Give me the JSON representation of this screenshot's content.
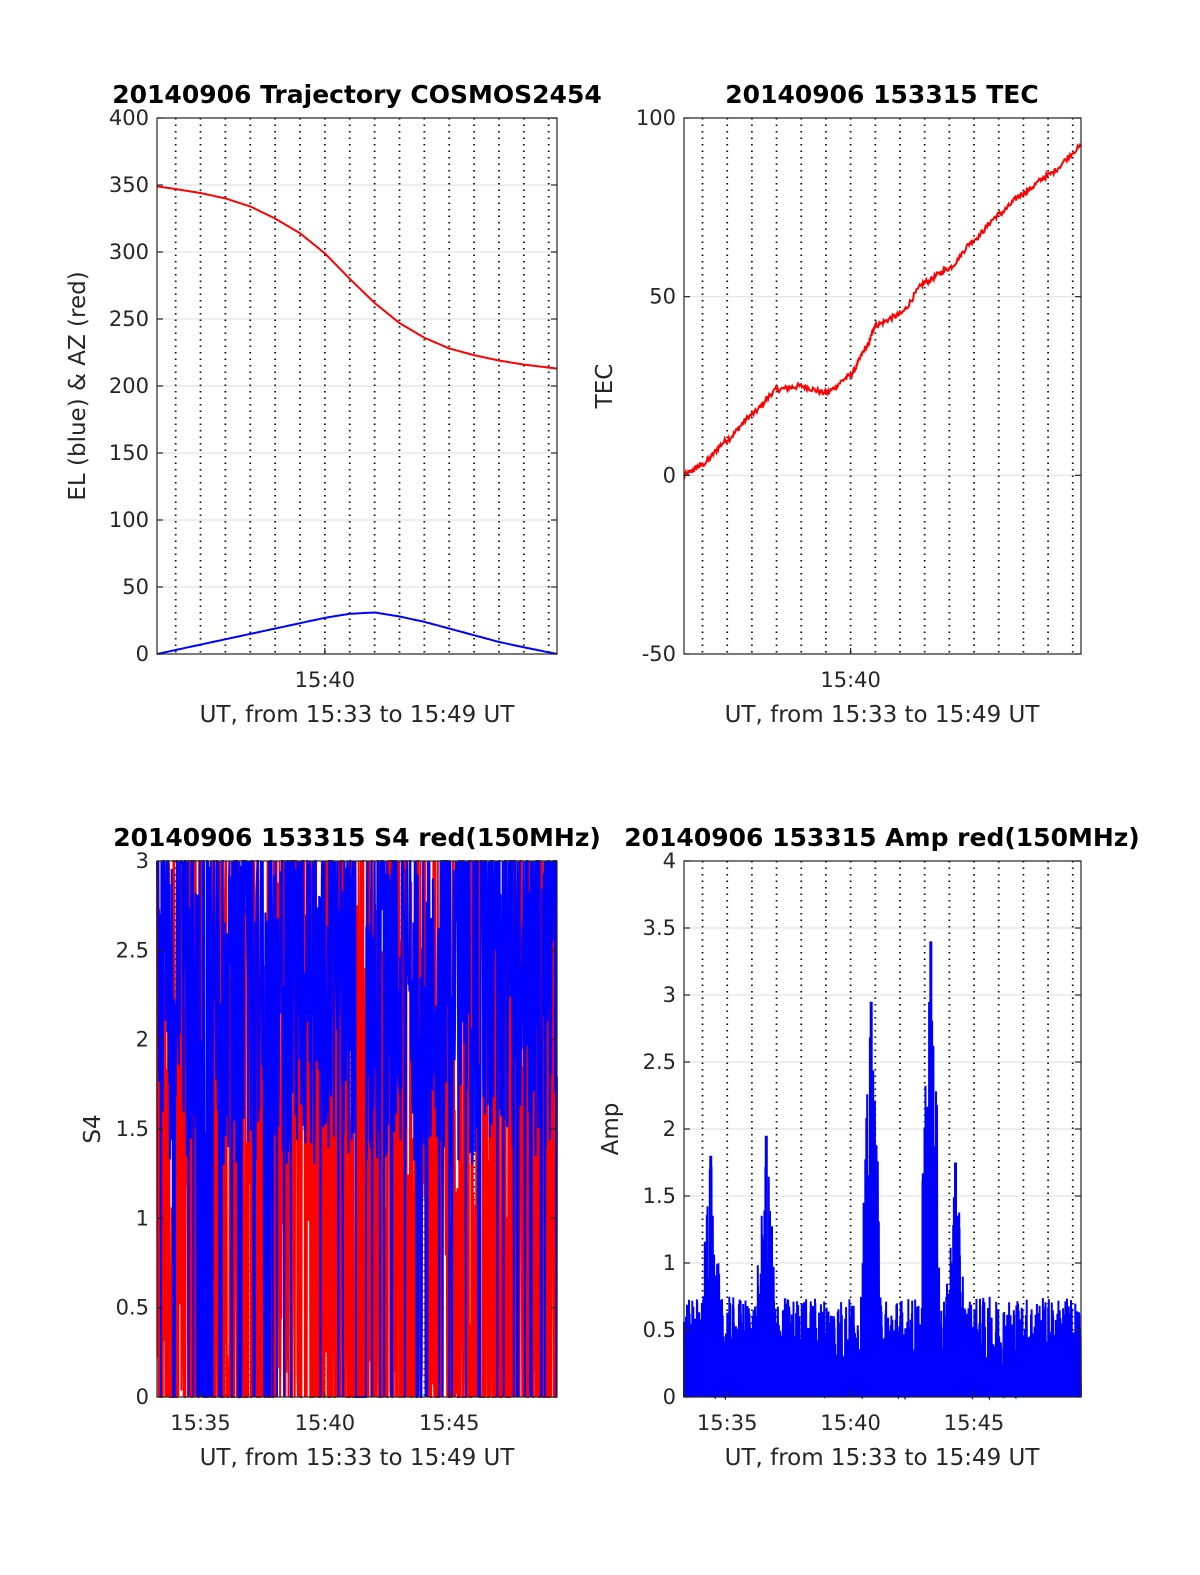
{
  "figure": {
    "background": "#ffffff",
    "colors": {
      "blue": "#0000ff",
      "red": "#ff0000",
      "grid": "#bdbdbd",
      "axis": "#262626"
    }
  },
  "chart_data": [
    {
      "id": "trajectory",
      "type": "line",
      "title": "20140906 Trajectory COSMOS2454",
      "xlabel": "UT, from 15:33 to 15:49 UT",
      "ylabel": "EL (blue) & AZ (red)",
      "xlim": [
        "15:33:15",
        "15:49:20"
      ],
      "ylim": [
        0,
        400
      ],
      "x_ticks": [
        "15:40"
      ],
      "y_ticks": [
        "0",
        "50",
        "100",
        "150",
        "200",
        "250",
        "300",
        "350",
        "400"
      ],
      "y_tick_values": [
        0,
        50,
        100,
        150,
        200,
        250,
        300,
        350,
        400
      ],
      "vertical_dotted_gridlines_minutes": [
        0.75,
        1.75,
        2.75,
        3.75,
        4.75,
        5.75,
        6.75,
        7.75,
        8.75,
        9.75,
        10.75,
        11.75,
        12.75,
        13.75,
        14.75,
        15.75
      ],
      "horizontal_grid": true,
      "series": [
        {
          "color": "#ff0000",
          "x": [
            "15:33:15",
            "15:34:00",
            "15:35:00",
            "15:36:00",
            "15:37:00",
            "15:38:00",
            "15:39:00",
            "15:40:00",
            "15:41:00",
            "15:42:00",
            "15:43:00",
            "15:44:00",
            "15:45:00",
            "15:46:00",
            "15:47:00",
            "15:48:00",
            "15:49:20"
          ],
          "y": [
            349,
            347,
            344,
            340,
            334,
            325,
            314,
            299,
            280,
            262,
            247,
            236,
            228,
            223,
            219,
            216,
            213
          ]
        },
        {
          "color": "#0000ff",
          "x": [
            "15:33:15",
            "15:34:00",
            "15:35:00",
            "15:36:00",
            "15:37:00",
            "15:38:00",
            "15:39:00",
            "15:40:00",
            "15:41:00",
            "15:42:00",
            "15:43:00",
            "15:44:00",
            "15:45:00",
            "15:46:00",
            "15:47:00",
            "15:48:00",
            "15:49:20"
          ],
          "y": [
            0,
            3,
            7,
            11,
            15,
            19,
            23,
            27,
            30,
            31,
            28,
            24,
            19,
            14,
            9,
            5,
            0
          ]
        }
      ]
    },
    {
      "id": "tec",
      "type": "line",
      "title": "20140906 153315 TEC",
      "xlabel": "UT, from 15:33 to 15:49 UT",
      "ylabel": "TEC",
      "xlim": [
        "15:33:15",
        "15:49:20"
      ],
      "ylim": [
        -50,
        100
      ],
      "x_ticks": [
        "15:40"
      ],
      "y_ticks": [
        "-50",
        "0",
        "50",
        "100"
      ],
      "y_tick_values": [
        -50,
        0,
        50,
        100
      ],
      "vertical_dotted_gridlines_minutes": [
        0.75,
        1.75,
        2.75,
        3.75,
        4.75,
        5.75,
        6.75,
        7.75,
        8.75,
        9.75,
        10.75,
        11.75,
        12.75,
        13.75,
        14.75,
        15.75
      ],
      "horizontal_grid": true,
      "series": [
        {
          "color": "#ff0000",
          "x": [
            "15:33:15",
            "15:34:00",
            "15:35:00",
            "15:36:00",
            "15:37:00",
            "15:38:00",
            "15:39:00",
            "15:40:00",
            "15:40:40",
            "15:41:00",
            "15:42:00",
            "15:43:00",
            "15:44:00",
            "15:45:00",
            "15:46:00",
            "15:47:00",
            "15:48:00",
            "15:49:20"
          ],
          "y": [
            0,
            3,
            10,
            17,
            24,
            25,
            23,
            28,
            36,
            42,
            45,
            54,
            58,
            66,
            73,
            79,
            84,
            92
          ]
        }
      ]
    },
    {
      "id": "s4",
      "type": "line",
      "title": "20140906 153315 S4 red(150MHz)",
      "xlabel": "UT, from 15:33 to 15:49 UT",
      "ylabel": "S4",
      "xlim": [
        "15:33:15",
        "15:49:20"
      ],
      "ylim": [
        0,
        3
      ],
      "x_ticks": [
        "15:35",
        "15:40",
        "15:45"
      ],
      "x_tick_minutes": [
        1.75,
        6.75,
        11.75
      ],
      "y_ticks": [
        "0",
        "0.5",
        "1",
        "1.5",
        "2",
        "2.5",
        "3"
      ],
      "y_tick_values": [
        0,
        0.5,
        1,
        1.5,
        2,
        2.5,
        3
      ],
      "vertical_dotted_gridlines_minutes": [
        0.75,
        1.75,
        2.75,
        3.75,
        4.75,
        5.75,
        6.75,
        7.75,
        8.75,
        9.75,
        10.75,
        11.75,
        12.75,
        13.75,
        14.75,
        15.75
      ],
      "horizontal_grid": true,
      "series": [
        {
          "color": "#ff0000",
          "x_range_minutes": [
            0,
            16.08
          ],
          "y_range": [
            0,
            3
          ],
          "samples": 900,
          "note_shape": "dense oscillation between 0 and 3"
        },
        {
          "color": "#0000ff",
          "x_range_minutes": [
            0,
            16.08
          ],
          "y_range": [
            0,
            3
          ],
          "samples": 900,
          "note_shape": "dense oscillation mostly 1.5-3 with drops to 0"
        }
      ]
    },
    {
      "id": "amp",
      "type": "line",
      "title": "20140906 153315 Amp red(150MHz)",
      "xlabel": "UT, from 15:33 to 15:49 UT",
      "ylabel": "Amp",
      "xlim": [
        "15:33:15",
        "15:49:20"
      ],
      "ylim": [
        0,
        4
      ],
      "x_ticks": [
        "15:35",
        "15:40",
        "15:45"
      ],
      "x_tick_minutes": [
        1.75,
        6.75,
        11.75
      ],
      "y_ticks": [
        "0",
        "0.5",
        "1",
        "1.5",
        "2",
        "2.5",
        "3",
        "3.5",
        "4"
      ],
      "y_tick_values": [
        0,
        0.5,
        1,
        1.5,
        2,
        2.5,
        3,
        3.5,
        4
      ],
      "vertical_dotted_gridlines_minutes": [
        0.75,
        1.75,
        2.75,
        3.75,
        4.75,
        5.75,
        6.75,
        7.75,
        8.75,
        9.75,
        10.75,
        11.75,
        12.75,
        13.75,
        14.75,
        15.75
      ],
      "horizontal_grid": true,
      "peaks": [
        {
          "x": "15:34:20",
          "y": 1.8
        },
        {
          "x": "15:36:35",
          "y": 1.95
        },
        {
          "x": "15:40:50",
          "y": 2.95
        },
        {
          "x": "15:43:15",
          "y": 3.4
        },
        {
          "x": "15:44:15",
          "y": 1.75
        }
      ],
      "series": [
        {
          "color": "#0000ff",
          "x_range_minutes": [
            0,
            16.08
          ],
          "y_range": [
            0,
            3.4
          ],
          "samples": 1200
        }
      ]
    }
  ]
}
